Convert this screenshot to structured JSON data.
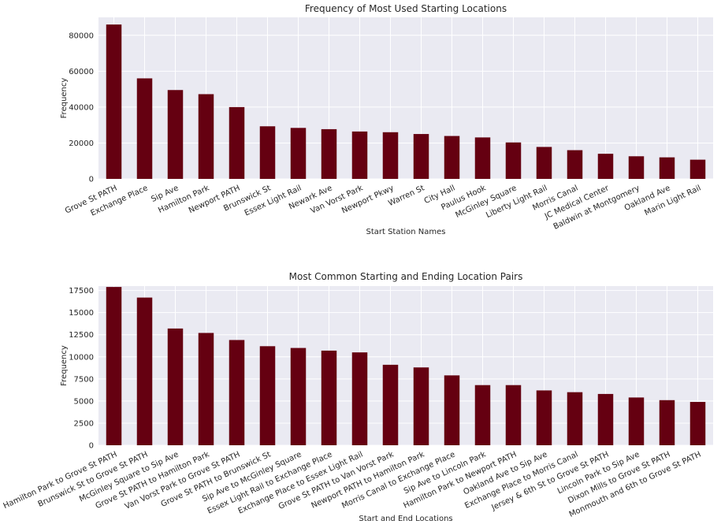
{
  "chart_data": [
    {
      "type": "bar",
      "title": "Frequency of Most Used Starting Locations",
      "xlabel": "Start Station Names",
      "ylabel": "Frequency",
      "ylim": [
        0,
        90000
      ],
      "yticks": [
        0,
        20000,
        40000,
        60000,
        80000
      ],
      "grid": true,
      "categories": [
        "Grove St PATH",
        "Exchange Place",
        "Sip Ave",
        "Hamilton Park",
        "Newport PATH",
        "Brunswick St",
        "Essex Light Rail",
        "Newark Ave",
        "Van Vorst Park",
        "Newport Pkwy",
        "Warren St",
        "City Hall",
        "Paulus Hook",
        "McGinley Square",
        "Liberty Light Rail",
        "Morris Canal",
        "JC Medical Center",
        "Baldwin at Montgomery",
        "Oakland Ave",
        "Marin Light Rail"
      ],
      "values": [
        86000,
        56000,
        49500,
        47200,
        40000,
        29300,
        28400,
        27700,
        26400,
        26000,
        25000,
        23900,
        23100,
        20300,
        17800,
        16000,
        14000,
        12600,
        12000,
        10700
      ]
    },
    {
      "type": "bar",
      "title": "Most Common Starting and Ending Location Pairs",
      "xlabel": "Start and End Locations",
      "ylabel": "Frequency",
      "ylim": [
        0,
        18000
      ],
      "yticks": [
        0,
        2500,
        5000,
        7500,
        10000,
        12500,
        15000,
        17500
      ],
      "grid": true,
      "categories": [
        "Hamilton Park to Grove St PATH",
        "Brunswick St to Grove St PATH",
        "McGinley Square to Sip Ave",
        "Grove St PATH to Hamilton Park",
        "Van Vorst Park to Grove St PATH",
        "Grove St PATH to Brunswick St",
        "Sip Ave to McGinley Square",
        "Essex Light Rail to Exchange Place",
        "Exchange Place to Essex Light Rail",
        "Grove St PATH to Van Vorst Park",
        "Newport PATH to Hamilton Park",
        "Morris Canal to Exchange Place",
        "Sip Ave to Lincoln Park",
        "Hamilton Park to Newport PATH",
        "Oakland Ave to Sip Ave",
        "Exchange Place to Morris Canal",
        "Jersey & 6th St to Grove St PATH",
        "Lincoln Park to Sip Ave",
        "Dixon Mills to Grove St PATH",
        "Monmouth and 6th to Grove St PATH"
      ],
      "values": [
        17900,
        16700,
        13200,
        12700,
        11900,
        11200,
        11000,
        10700,
        10500,
        9100,
        8800,
        7900,
        6800,
        6800,
        6200,
        6000,
        5800,
        5400,
        5100,
        4900
      ]
    }
  ]
}
